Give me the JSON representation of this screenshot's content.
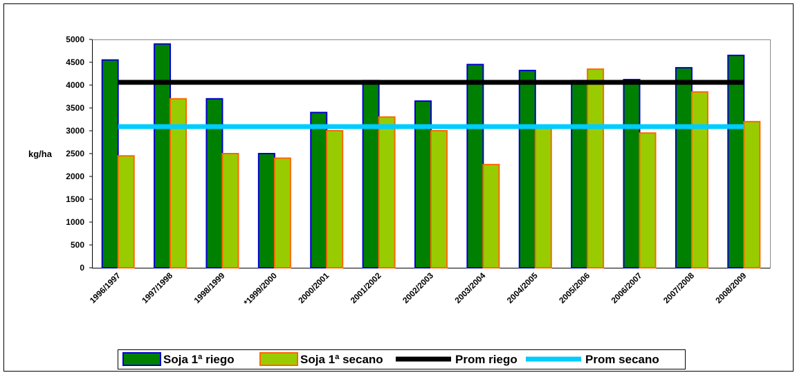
{
  "chart_data": {
    "type": "bar",
    "y_label": "kg/ha",
    "categories": [
      "1996/1997",
      "1997/1998",
      "1998/1999",
      "*1999/2000",
      "2000/2001",
      "2001/2002",
      "2002/2003",
      "2003/2004",
      "2004/2005",
      "2005/2006",
      "2006/2007",
      "2007/2008",
      "2008/2009"
    ],
    "series": [
      {
        "name": "Soja 1ª riego",
        "type": "bar",
        "color": "#008000",
        "edge_color": "#0000cc",
        "values": [
          4550,
          4900,
          3700,
          2500,
          3400,
          4100,
          3650,
          4450,
          4320,
          4100,
          4120,
          4380,
          4650
        ]
      },
      {
        "name": "Soja 1ª secano",
        "type": "bar",
        "color": "#99cc00",
        "edge_color": "#ff6600",
        "values": [
          2450,
          3700,
          2500,
          2400,
          3000,
          3300,
          3000,
          2260,
          3100,
          4350,
          2950,
          3850,
          3200
        ]
      },
      {
        "name": "Prom riego",
        "type": "line",
        "color": "#000000",
        "values": [
          4060,
          4060,
          4060,
          4060,
          4060,
          4060,
          4060,
          4060,
          4060,
          4060,
          4060,
          4060,
          4060
        ]
      },
      {
        "name": "Prom secano",
        "type": "line",
        "color": "#00ccff",
        "values": [
          3090,
          3090,
          3090,
          3090,
          3090,
          3090,
          3090,
          3090,
          3090,
          3090,
          3090,
          3090,
          3090
        ]
      }
    ],
    "ylim": [
      0,
      5000
    ],
    "yticks": [
      0,
      500,
      1000,
      1500,
      2000,
      2500,
      3000,
      3500,
      4000,
      4500,
      5000
    ],
    "legend": "bottom"
  }
}
